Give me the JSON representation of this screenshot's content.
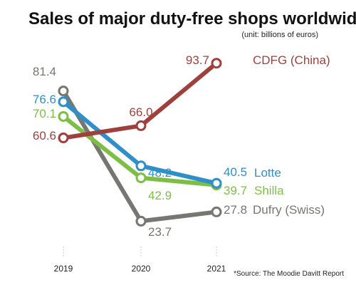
{
  "chart_data": {
    "type": "line",
    "title": "Sales of major duty-free shops worldwide",
    "subtitle": "(unit: billions of euros)",
    "source": "*Source: The Moodie Davitt Report",
    "categories": [
      "2019",
      "2020",
      "2021"
    ],
    "ylim": [
      20,
      100
    ],
    "grid": false,
    "legend": "inline-right",
    "series": [
      {
        "name": "CDFG (China)",
        "color": "#a0403c",
        "values": [
          60.6,
          66.0,
          93.7
        ],
        "labels": [
          "60.6",
          "66.0",
          "93.7"
        ]
      },
      {
        "name": "Lotte",
        "color": "#2e8fc9",
        "values": [
          76.6,
          48.2,
          40.5
        ],
        "labels": [
          "76.6",
          "48.2",
          "40.5"
        ]
      },
      {
        "name": "Shilla",
        "color": "#7dbf45",
        "values": [
          70.1,
          42.9,
          39.7
        ],
        "labels": [
          "70.1",
          "42.9",
          "39.7"
        ]
      },
      {
        "name": "Dufry (Swiss)",
        "color": "#767772",
        "values": [
          81.4,
          23.7,
          27.8
        ],
        "labels": [
          "81.4",
          "23.7",
          "27.8"
        ]
      }
    ]
  }
}
